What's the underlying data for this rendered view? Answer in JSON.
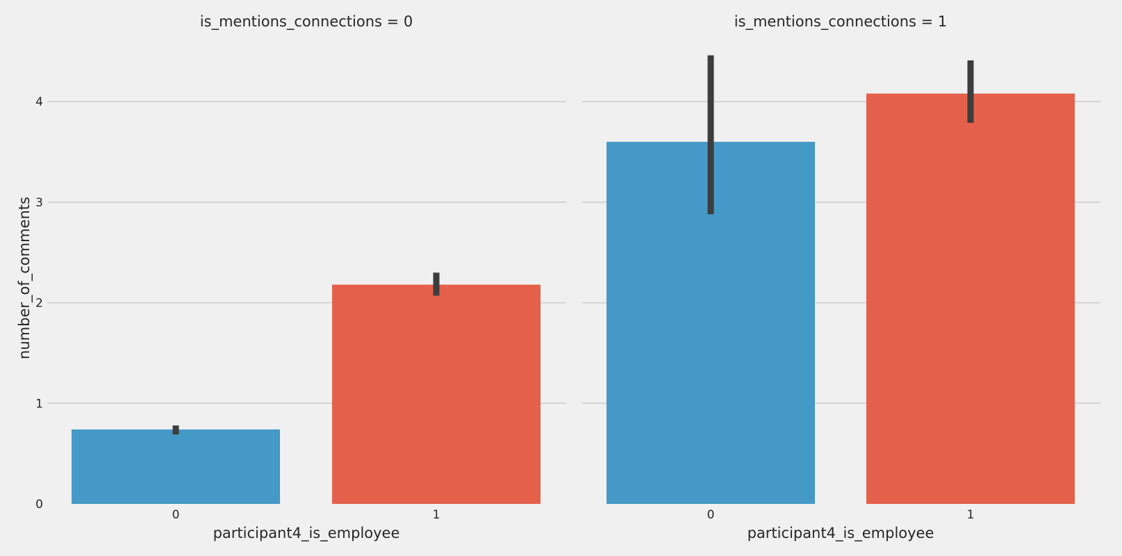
{
  "chart_data": {
    "type": "bar",
    "ylabel": "number_of_comments",
    "ylim": [
      0,
      4.5
    ],
    "yticks": [
      0,
      1,
      2,
      3,
      4
    ],
    "grid": "horizontal",
    "colors": {
      "0": "#4599c7",
      "1": "#e5604a",
      "errorbar": "#3d3d3d",
      "grid": "#cbcbcb"
    },
    "panels": [
      {
        "title": "is_mentions_connections = 0",
        "xlabel": "participant4_is_employee",
        "categories": [
          "0",
          "1"
        ],
        "values": [
          0.74,
          2.18
        ],
        "ci": [
          [
            0.69,
            0.78
          ],
          [
            2.07,
            2.3
          ]
        ]
      },
      {
        "title": "is_mentions_connections = 1",
        "xlabel": "participant4_is_employee",
        "categories": [
          "0",
          "1"
        ],
        "values": [
          3.6,
          4.08
        ],
        "ci": [
          [
            2.88,
            4.46
          ],
          [
            3.79,
            4.41
          ]
        ]
      }
    ]
  }
}
